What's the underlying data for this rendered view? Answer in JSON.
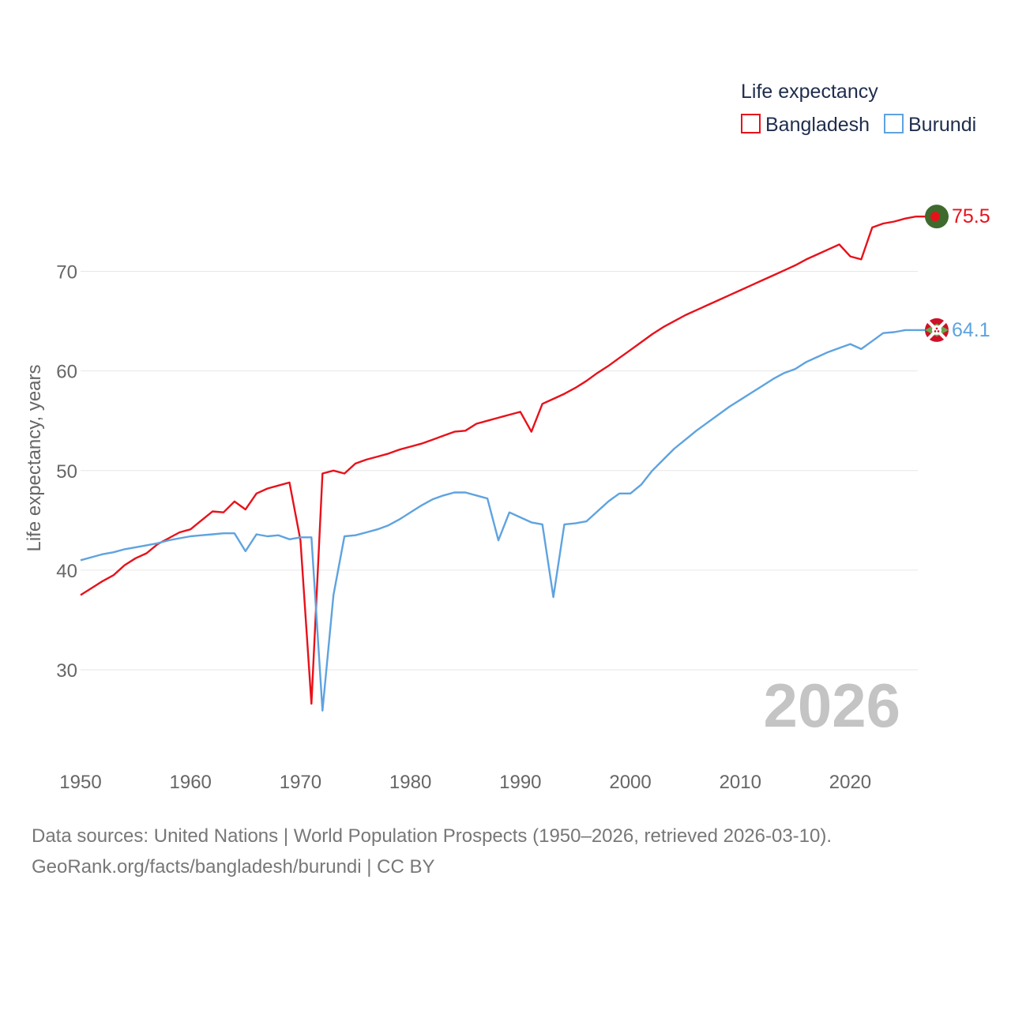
{
  "chart_data": {
    "type": "line",
    "ylabel": "Life expectancy, years",
    "xlabel": "",
    "xlim": [
      1950,
      2026
    ],
    "ylim": [
      23.5,
      79
    ],
    "x_ticks": [
      1950,
      1960,
      1970,
      1980,
      1990,
      2000,
      2010,
      2020
    ],
    "y_ticks": [
      30,
      40,
      50,
      60,
      70
    ],
    "grid": true,
    "legend_title": "Life expectancy",
    "legend_position": "top-right",
    "year_label": "2026",
    "x": [
      1950,
      1951,
      1952,
      1953,
      1954,
      1955,
      1956,
      1957,
      1958,
      1959,
      1960,
      1961,
      1962,
      1963,
      1964,
      1965,
      1966,
      1967,
      1968,
      1969,
      1970,
      1971,
      1972,
      1973,
      1974,
      1975,
      1976,
      1977,
      1978,
      1979,
      1980,
      1981,
      1982,
      1983,
      1984,
      1985,
      1986,
      1987,
      1988,
      1989,
      1990,
      1991,
      1992,
      1993,
      1994,
      1995,
      1996,
      1997,
      1998,
      1999,
      2000,
      2001,
      2002,
      2003,
      2004,
      2005,
      2006,
      2007,
      2008,
      2009,
      2010,
      2011,
      2012,
      2013,
      2014,
      2015,
      2016,
      2017,
      2018,
      2019,
      2020,
      2021,
      2022,
      2023,
      2024,
      2025,
      2026
    ],
    "series": [
      {
        "name": "Bangladesh",
        "color": "#e8111a",
        "end_label": "75.5",
        "flag_icon": "bangladesh-flag-icon",
        "values": [
          37.5,
          38.2,
          38.9,
          39.5,
          40.5,
          41.2,
          41.7,
          42.6,
          43.2,
          43.8,
          44.1,
          45.0,
          45.9,
          45.8,
          46.9,
          46.1,
          47.7,
          48.2,
          48.5,
          48.8,
          43.0,
          26.6,
          49.7,
          50.0,
          49.7,
          50.7,
          51.1,
          51.4,
          51.7,
          52.1,
          52.4,
          52.7,
          53.1,
          53.5,
          53.9,
          54.0,
          54.7,
          55.0,
          55.3,
          55.6,
          55.9,
          53.9,
          56.7,
          57.2,
          57.7,
          58.3,
          59.0,
          59.8,
          60.5,
          61.3,
          62.1,
          62.9,
          63.7,
          64.4,
          65.0,
          65.6,
          66.1,
          66.6,
          67.1,
          67.6,
          68.1,
          68.6,
          69.1,
          69.6,
          70.1,
          70.6,
          71.2,
          71.7,
          72.2,
          72.7,
          71.5,
          71.2,
          74.4,
          74.8,
          75.0,
          75.3,
          75.5
        ]
      },
      {
        "name": "Burundi",
        "color": "#5ea3e0",
        "end_label": "64.1",
        "flag_icon": "burundi-flag-icon",
        "values": [
          41.0,
          41.3,
          41.6,
          41.8,
          42.1,
          42.3,
          42.5,
          42.7,
          43.0,
          43.2,
          43.4,
          43.5,
          43.6,
          43.7,
          43.7,
          41.9,
          43.6,
          43.4,
          43.5,
          43.1,
          43.3,
          43.3,
          25.9,
          37.5,
          43.4,
          43.5,
          43.8,
          44.1,
          44.5,
          45.1,
          45.8,
          46.5,
          47.1,
          47.5,
          47.8,
          47.8,
          47.5,
          47.2,
          43.0,
          45.8,
          45.3,
          44.8,
          44.6,
          37.3,
          44.6,
          44.7,
          44.9,
          45.9,
          46.9,
          47.7,
          47.7,
          48.6,
          50.0,
          51.1,
          52.2,
          53.1,
          54.0,
          54.8,
          55.6,
          56.4,
          57.1,
          57.8,
          58.5,
          59.2,
          59.8,
          60.2,
          60.9,
          61.4,
          61.9,
          62.3,
          62.7,
          62.2,
          63.0,
          63.8,
          63.9,
          64.1,
          64.1
        ]
      }
    ]
  },
  "footer": {
    "line1": "Data sources: United Nations | World Population Prospects (1950–2026, retrieved 2026-03-10).",
    "line2": "GeoRank.org/facts/bangladesh/burundi | CC BY"
  },
  "colors": {
    "grid": "#e6e6e6",
    "tick_text": "#666666",
    "legend_text": "#1f2d4d",
    "year_text": "#c4c4c4",
    "bangladesh_flag_green": "#3f6a2e",
    "bangladesh_flag_red": "#e8111a",
    "burundi_flag_red": "#ce1126",
    "burundi_flag_green": "#6aa84f"
  }
}
